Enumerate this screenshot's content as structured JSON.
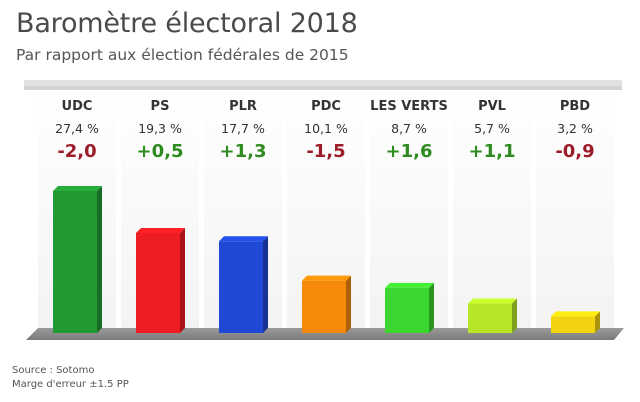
{
  "header": {
    "title": "Baromètre électoral 2018",
    "subtitle": "Par rapport aux élection fédérales de 2015"
  },
  "footer": {
    "source": "Source : Sotomo",
    "margin": "Marge d'erreur ±1.5 PP"
  },
  "chart_data": {
    "type": "bar",
    "categories": [
      "UDC",
      "PS",
      "PLR",
      "PDC",
      "LES VERTS",
      "PVL",
      "PBD"
    ],
    "values": [
      27.4,
      19.3,
      17.7,
      10.1,
      8.7,
      5.7,
      3.2
    ],
    "value_labels": [
      "27,4 %",
      "19,3 %",
      "17,7 %",
      "10,1 %",
      "8,7 %",
      "5,7 %",
      "3,2 %"
    ],
    "change_labels": [
      "-2,0",
      "+0,5",
      "+1,3",
      "-1,5",
      "+1,6",
      "+1,1",
      "-0,9"
    ],
    "changes": [
      -2.0,
      0.5,
      1.3,
      -1.5,
      1.6,
      1.1,
      -0.9
    ],
    "bar_colors": [
      "#229a34",
      "#ee1c23",
      "#1f48d4",
      "#f58a0a",
      "#3bd630",
      "#b7e629",
      "#f2d30f"
    ],
    "positive_color": "#2e8b1f",
    "negative_color": "#9c1c2a",
    "ylim": [
      0,
      30
    ],
    "xlabel": "",
    "ylabel": "",
    "grid": false,
    "legend": "none"
  }
}
